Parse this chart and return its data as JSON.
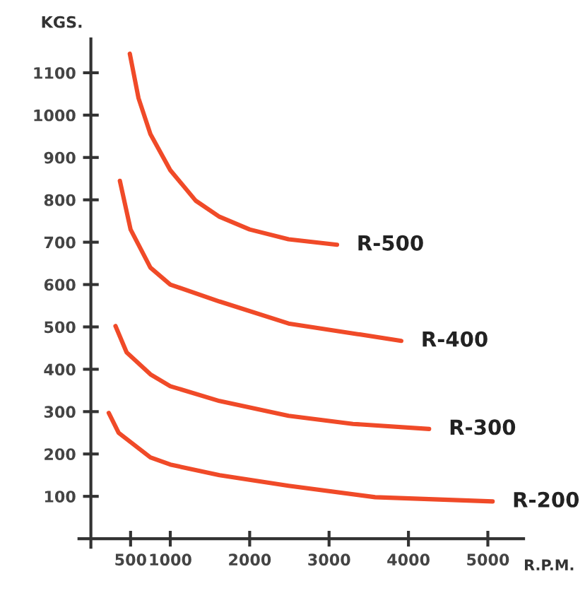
{
  "chart_data": {
    "type": "line",
    "xlabel": "R.P.M.",
    "ylabel": "KGS.",
    "xlim": [
      -150,
      5450
    ],
    "ylim": [
      -20,
      1180
    ],
    "xticks": [
      500,
      1000,
      2000,
      3000,
      4000,
      5000
    ],
    "yticks": [
      100,
      200,
      300,
      400,
      500,
      600,
      700,
      800,
      900,
      1000,
      1100
    ],
    "grid": false,
    "legend": false,
    "marker": "none",
    "line_style": "solid",
    "series": [
      {
        "name": "R-500",
        "color": "#f04a28",
        "x": [
          490,
          600,
          750,
          1000,
          1320,
          1620,
          2000,
          2490,
          3100
        ],
        "values": [
          1145,
          1040,
          955,
          870,
          798,
          760,
          730,
          707,
          694
        ]
      },
      {
        "name": "R-400",
        "color": "#f04a28",
        "x": [
          365,
          500,
          750,
          1000,
          1620,
          2490,
          3360,
          3910
        ],
        "values": [
          845,
          730,
          640,
          600,
          560,
          508,
          483,
          467
        ]
      },
      {
        "name": "R-300",
        "color": "#f04a28",
        "x": [
          310,
          450,
          750,
          1000,
          1620,
          2490,
          3300,
          4260
        ],
        "values": [
          502,
          440,
          388,
          360,
          325,
          290,
          271,
          259
        ]
      },
      {
        "name": "R-200",
        "color": "#f04a28",
        "x": [
          225,
          350,
          750,
          1000,
          1620,
          2490,
          3580,
          5060
        ],
        "values": [
          297,
          250,
          192,
          175,
          150,
          125,
          98,
          88
        ]
      }
    ]
  }
}
